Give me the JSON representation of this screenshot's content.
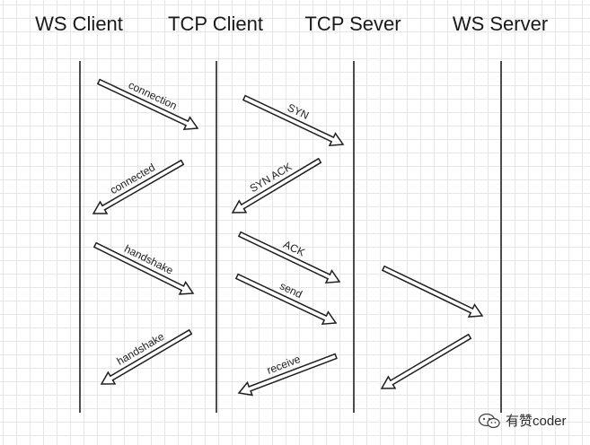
{
  "lanes": [
    {
      "id": "ws-client",
      "label": "WS Client"
    },
    {
      "id": "tcp-client",
      "label": "TCP Client"
    },
    {
      "id": "tcp-server",
      "label": "TCP Sever"
    },
    {
      "id": "ws-server",
      "label": "WS Server"
    }
  ],
  "messages": [
    {
      "id": "connection",
      "label": "connection",
      "from": "ws-client",
      "to": "tcp-client"
    },
    {
      "id": "connected",
      "label": "connected",
      "from": "tcp-client",
      "to": "ws-client"
    },
    {
      "id": "handshake-request",
      "label": "handshake",
      "from": "ws-client",
      "to": "tcp-client"
    },
    {
      "id": "handshake-response",
      "label": "handshake",
      "from": "tcp-client",
      "to": "ws-client"
    },
    {
      "id": "syn",
      "label": "SYN",
      "from": "tcp-client",
      "to": "tcp-server"
    },
    {
      "id": "syn-ack",
      "label": "SYN ACK",
      "from": "tcp-server",
      "to": "tcp-client"
    },
    {
      "id": "ack",
      "label": "ACK",
      "from": "tcp-client",
      "to": "tcp-server"
    },
    {
      "id": "send",
      "label": "send",
      "from": "tcp-client",
      "to": "tcp-server"
    },
    {
      "id": "receive",
      "label": "receive",
      "from": "tcp-server",
      "to": "tcp-client"
    },
    {
      "id": "forward",
      "label": "",
      "from": "tcp-server",
      "to": "ws-server"
    },
    {
      "id": "reply",
      "label": "",
      "from": "ws-server",
      "to": "tcp-server"
    }
  ],
  "watermark": {
    "text": "有赞coder",
    "icon": "wechat-icon"
  }
}
